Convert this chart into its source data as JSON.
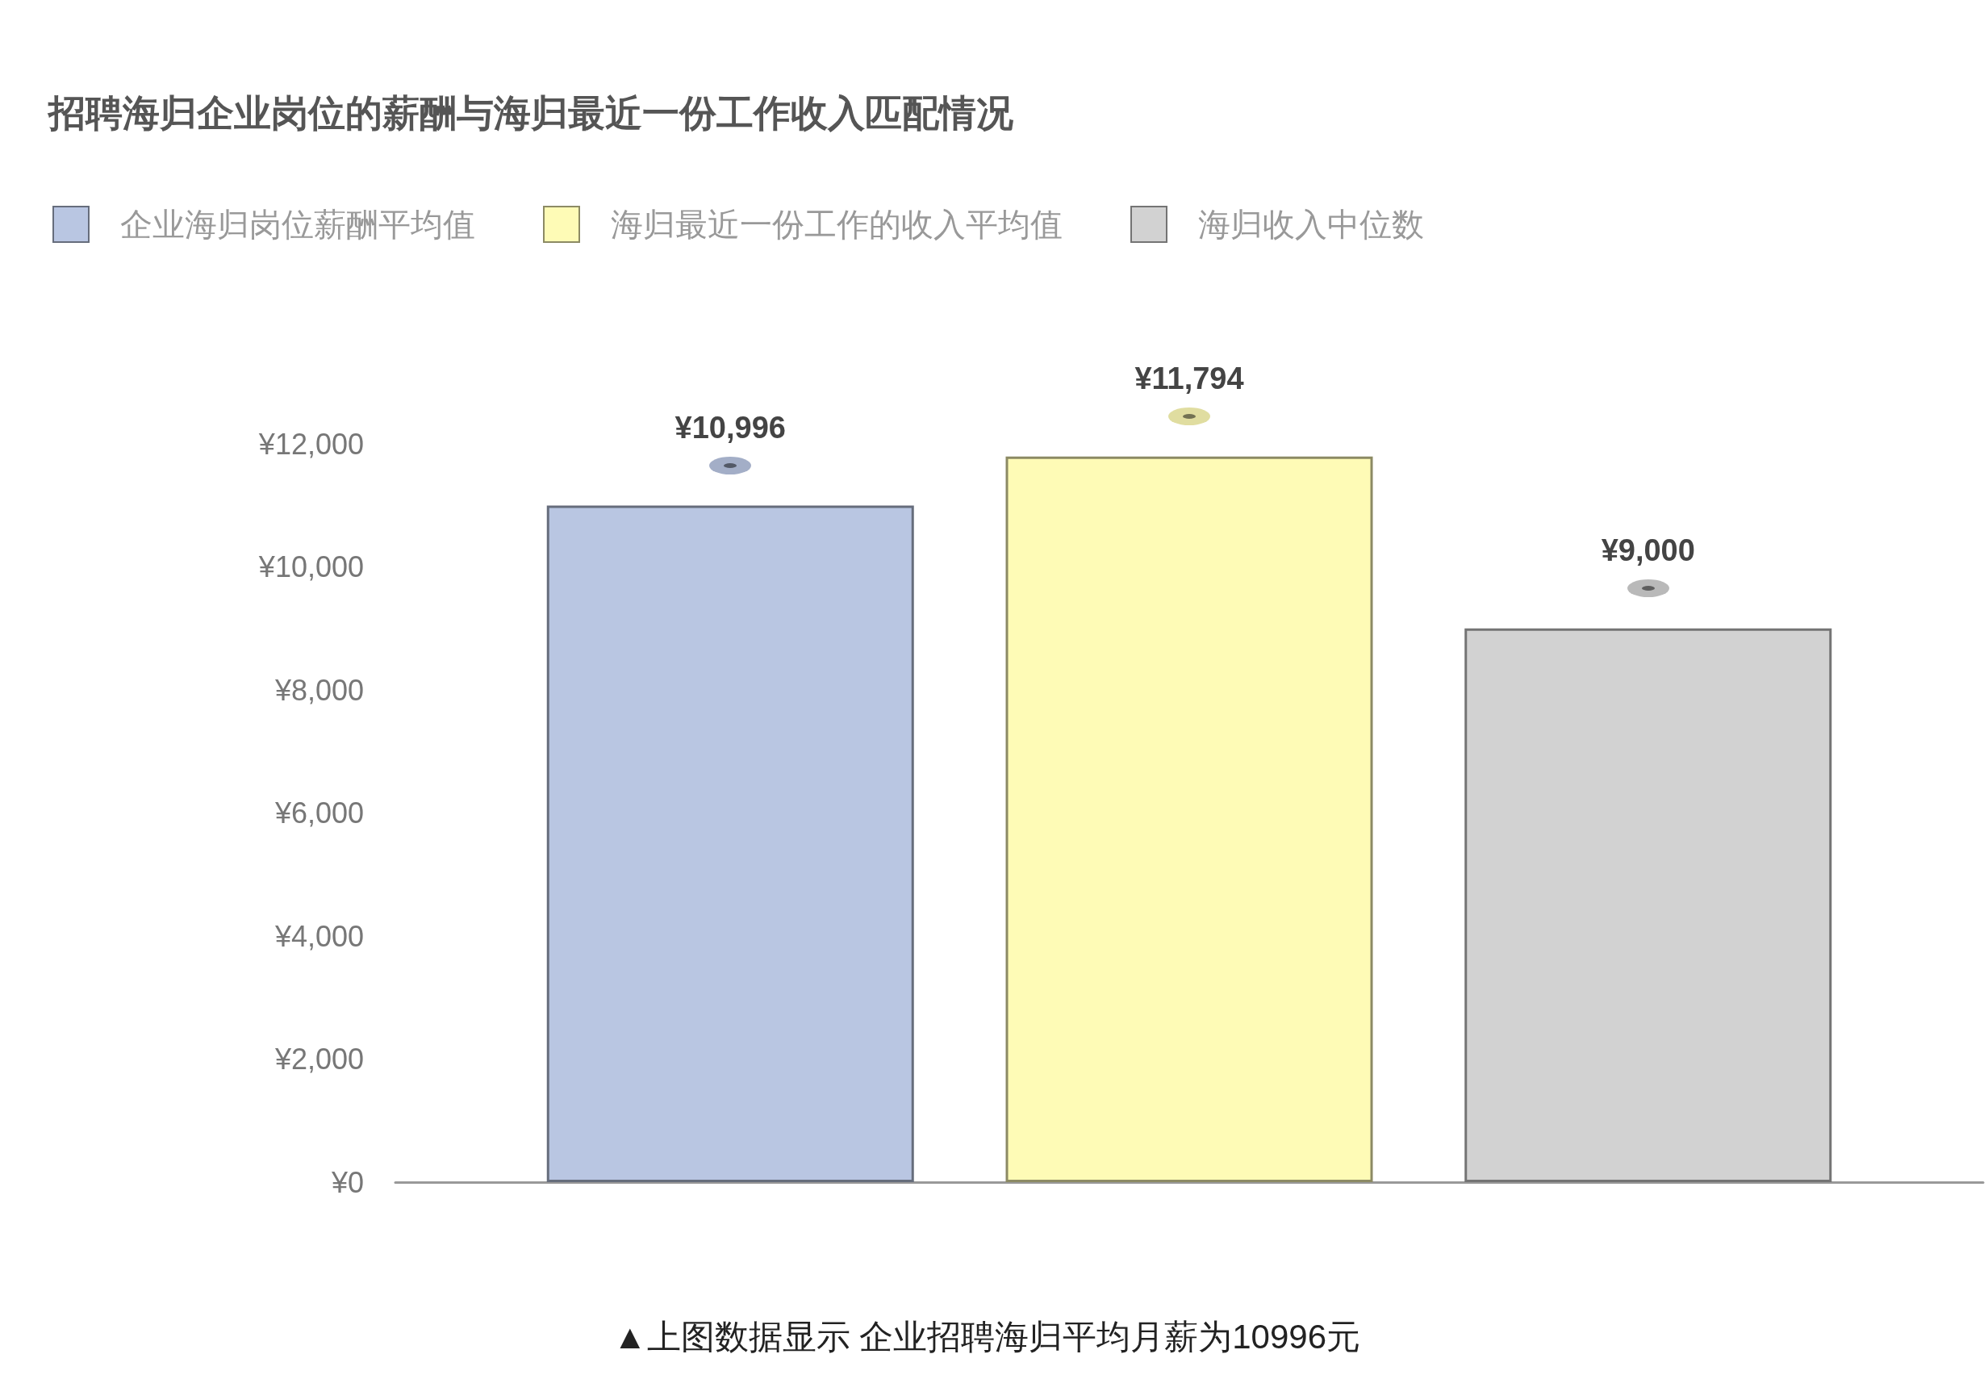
{
  "chart_data": {
    "type": "bar",
    "title": "招聘海归企业岗位的薪酬与海归最近一份工作收入匹配情况",
    "categories": [
      null
    ],
    "series": [
      {
        "name": "企业海归岗位薪酬平均值",
        "color": "#b9c6e2",
        "values": [
          10996
        ],
        "value_labels": [
          "¥10,996"
        ]
      },
      {
        "name": "海归最近一份工作的收入平均值",
        "color": "#fefbb6",
        "values": [
          11794
        ],
        "value_labels": [
          "¥11,794"
        ]
      },
      {
        "name": "海归收入中位数",
        "color": "#d2d2d2",
        "values": [
          9000
        ],
        "value_labels": [
          "¥9,000"
        ]
      }
    ],
    "ylim": [
      0,
      12000
    ],
    "yticks": [
      {
        "value": 0,
        "label": "¥0"
      },
      {
        "value": 2000,
        "label": "¥2,000"
      },
      {
        "value": 4000,
        "label": "¥4,000"
      },
      {
        "value": 6000,
        "label": "¥6,000"
      },
      {
        "value": 8000,
        "label": "¥8,000"
      },
      {
        "value": 10000,
        "label": "¥10,000"
      },
      {
        "value": 12000,
        "label": "¥12,000"
      }
    ],
    "grid": false,
    "legend": "top left",
    "annotations": [
      "▲上图数据显示 企业招聘海归平均月薪为10996元"
    ]
  }
}
